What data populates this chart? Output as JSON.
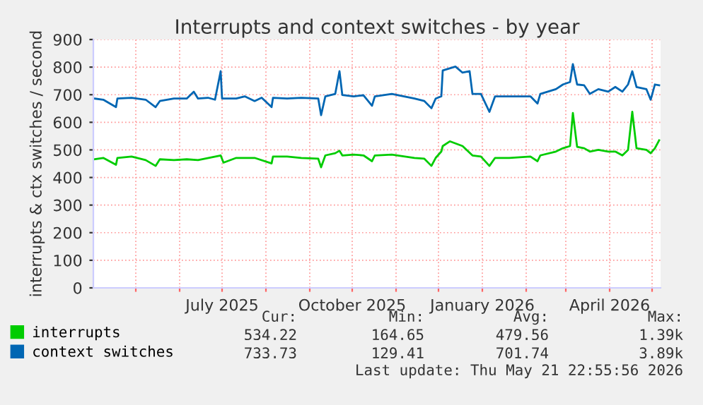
{
  "chart_data": {
    "type": "line",
    "title": "Interrupts and context switches - by year",
    "ylabel": "interrupts & ctx switches / second",
    "xlim": [
      "2025-04-01",
      "2026-05-07"
    ],
    "ylim": [
      0,
      900
    ],
    "yticks": [
      0,
      100,
      200,
      300,
      400,
      500,
      600,
      700,
      800,
      900
    ],
    "xticks": [
      {
        "value": "2025-05-01",
        "label": null
      },
      {
        "value": "2025-06-01",
        "label": null
      },
      {
        "value": "2025-07-01",
        "label": "July 2025"
      },
      {
        "value": "2025-08-01",
        "label": null
      },
      {
        "value": "2025-09-01",
        "label": null
      },
      {
        "value": "2025-10-01",
        "label": "October 2025"
      },
      {
        "value": "2025-11-01",
        "label": null
      },
      {
        "value": "2025-12-01",
        "label": null
      },
      {
        "value": "2026-01-01",
        "label": "January 2026"
      },
      {
        "value": "2026-02-01",
        "label": null
      },
      {
        "value": "2026-03-01",
        "label": null
      },
      {
        "value": "2026-04-01",
        "label": "April 2026"
      },
      {
        "value": "2026-05-01",
        "label": null
      }
    ],
    "grid": true,
    "legend": "bottom",
    "marker": "none",
    "line_style": "solid",
    "annotations": [
      "Cur:",
      "Min:",
      "Avg:",
      "Max:",
      "534.22",
      "164.65",
      "479.56",
      "1.39k",
      "733.73",
      "129.41",
      "701.74",
      "3.89k",
      "Last update: Thu May 21 22:55:56 2026"
    ],
    "series": [
      {
        "name": "interrupts",
        "color": "#00cc00",
        "x": [
          "2025-04-02",
          "2025-04-08",
          "2025-04-17",
          "2025-04-18",
          "2025-04-28",
          "2025-05-08",
          "2025-05-15",
          "2025-05-18",
          "2025-05-28",
          "2025-06-06",
          "2025-06-14",
          "2025-06-30",
          "2025-07-02",
          "2025-07-11",
          "2025-07-24",
          "2025-08-05",
          "2025-08-06",
          "2025-08-16",
          "2025-08-26",
          "2025-09-07",
          "2025-09-09",
          "2025-09-12",
          "2025-09-19",
          "2025-09-22",
          "2025-09-24",
          "2025-10-02",
          "2025-10-09",
          "2025-10-15",
          "2025-10-17",
          "2025-10-29",
          "2025-11-14",
          "2025-11-21",
          "2025-11-26",
          "2025-11-29",
          "2025-12-03",
          "2025-12-04",
          "2025-12-09",
          "2025-12-18",
          "2025-12-25",
          "2025-12-31",
          "2026-01-06",
          "2026-01-10",
          "2026-01-20",
          "2026-02-04",
          "2026-02-09",
          "2026-02-11",
          "2026-02-22",
          "2026-02-27",
          "2026-03-04",
          "2026-03-06",
          "2026-03-09",
          "2026-03-14",
          "2026-03-18",
          "2026-03-24",
          "2026-03-31",
          "2026-04-05",
          "2026-04-10",
          "2026-04-14",
          "2026-04-17",
          "2026-04-20",
          "2026-04-27",
          "2026-04-30",
          "2026-05-03",
          "2026-05-06"
        ],
        "values": [
          466,
          471,
          446,
          471,
          476,
          463,
          442,
          466,
          463,
          466,
          463,
          480,
          454,
          471,
          471,
          451,
          476,
          476,
          471,
          468,
          437,
          480,
          488,
          497,
          480,
          483,
          480,
          459,
          480,
          483,
          471,
          468,
          442,
          471,
          494,
          514,
          531,
          514,
          480,
          476,
          442,
          471,
          471,
          476,
          459,
          480,
          494,
          506,
          514,
          634,
          511,
          506,
          494,
          500,
          494,
          494,
          480,
          500,
          638,
          506,
          500,
          488,
          506,
          535
        ]
      },
      {
        "name": "context switches",
        "color": "#0066b3",
        "x": [
          "2025-04-02",
          "2025-04-08",
          "2025-04-17",
          "2025-04-18",
          "2025-04-28",
          "2025-05-08",
          "2025-05-15",
          "2025-05-18",
          "2025-05-28",
          "2025-06-06",
          "2025-06-11",
          "2025-06-14",
          "2025-06-21",
          "2025-06-26",
          "2025-06-30",
          "2025-07-01",
          "2025-07-11",
          "2025-07-17",
          "2025-07-24",
          "2025-07-29",
          "2025-08-05",
          "2025-08-06",
          "2025-08-16",
          "2025-08-26",
          "2025-09-07",
          "2025-09-09",
          "2025-09-12",
          "2025-09-19",
          "2025-09-22",
          "2025-09-24",
          "2025-10-02",
          "2025-10-09",
          "2025-10-15",
          "2025-10-17",
          "2025-10-29",
          "2025-11-14",
          "2025-11-21",
          "2025-11-26",
          "2025-11-29",
          "2025-12-03",
          "2025-12-04",
          "2025-12-13",
          "2025-12-18",
          "2025-12-23",
          "2025-12-25",
          "2025-12-31",
          "2026-01-06",
          "2026-01-10",
          "2026-01-20",
          "2026-02-04",
          "2026-02-09",
          "2026-02-11",
          "2026-02-22",
          "2026-02-27",
          "2026-03-04",
          "2026-03-06",
          "2026-03-09",
          "2026-03-14",
          "2026-03-18",
          "2026-03-24",
          "2026-03-31",
          "2026-04-05",
          "2026-04-10",
          "2026-04-14",
          "2026-04-17",
          "2026-04-20",
          "2026-04-27",
          "2026-04-30",
          "2026-05-03",
          "2026-05-06"
        ],
        "values": [
          686,
          682,
          655,
          686,
          689,
          682,
          655,
          677,
          686,
          686,
          711,
          686,
          689,
          682,
          785,
          686,
          686,
          694,
          677,
          689,
          655,
          689,
          686,
          689,
          686,
          626,
          694,
          703,
          785,
          699,
          694,
          698,
          660,
          694,
          703,
          686,
          677,
          651,
          686,
          694,
          788,
          802,
          780,
          785,
          703,
          703,
          638,
          694,
          694,
          694,
          668,
          703,
          720,
          737,
          746,
          811,
          737,
          734,
          703,
          720,
          711,
          728,
          711,
          737,
          785,
          728,
          720,
          682,
          737,
          734
        ]
      }
    ]
  }
}
